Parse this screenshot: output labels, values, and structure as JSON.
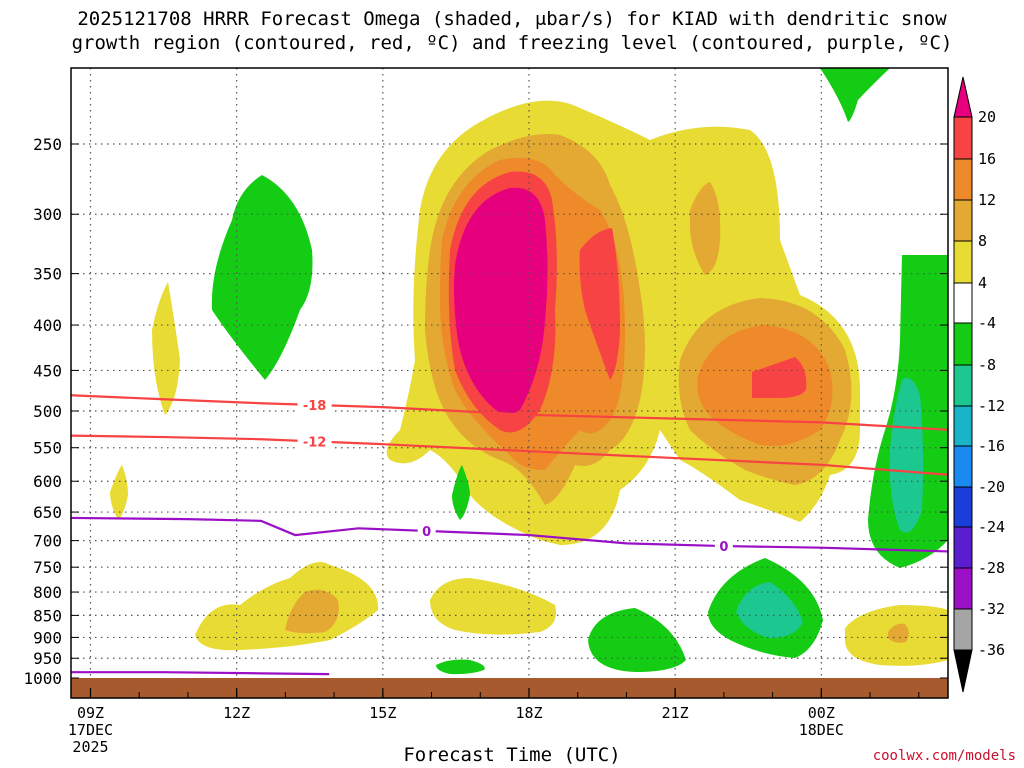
{
  "title_line1": "2025121708 HRRR Forecast Omega (shaded, μbar/s) for KIAD with dendritic snow",
  "title_line2": "growth region (contoured, red, ºC) and freezing level (contoured, purple, ºC)",
  "chart_data": {
    "type": "heatmap",
    "xlabel": "Forecast Time (UTC)",
    "x_ticks": [
      {
        "hour": 1,
        "label": "09Z",
        "sub1": "17DEC",
        "sub2": "2025"
      },
      {
        "hour": 4,
        "label": "12Z",
        "sub1": "",
        "sub2": ""
      },
      {
        "hour": 7,
        "label": "15Z",
        "sub1": "",
        "sub2": ""
      },
      {
        "hour": 10,
        "label": "18Z",
        "sub1": "",
        "sub2": ""
      },
      {
        "hour": 13,
        "label": "21Z",
        "sub1": "",
        "sub2": ""
      },
      {
        "hour": 16,
        "label": "00Z",
        "sub1": "18DEC",
        "sub2": ""
      }
    ],
    "x_range_hours": [
      0.6,
      18.6
    ],
    "y_ticks": [
      250,
      300,
      350,
      400,
      450,
      500,
      550,
      600,
      650,
      700,
      750,
      800,
      850,
      900,
      950,
      1000
    ],
    "y_range_hpa": [
      200,
      1000
    ],
    "colorbar": {
      "labels": [
        "20",
        "16",
        "12",
        "8",
        "4",
        "-4",
        "-8",
        "-12",
        "-16",
        "-20",
        "-24",
        "-28",
        "-32",
        "-36"
      ],
      "colors": [
        "#e6007e",
        "#f74343",
        "#ef8a2b",
        "#e3a932",
        "#e8db33",
        "#ffffff",
        "#13cc13",
        "#1cc790",
        "#19b4c8",
        "#198af0",
        "#1a3ed9",
        "#5a1ed0",
        "#9b0fc6",
        "#a5a5a5"
      ]
    },
    "dgz_contours": [
      {
        "label": "-18",
        "color": "#f74343",
        "points": [
          [
            0.6,
            480
          ],
          [
            2.5,
            485
          ],
          [
            4.5,
            490
          ],
          [
            7,
            495
          ],
          [
            10,
            505
          ],
          [
            13,
            510
          ],
          [
            16,
            515
          ],
          [
            18.6,
            525
          ]
        ]
      },
      {
        "label": "-12",
        "color": "#f74343",
        "points": [
          [
            0.6,
            533
          ],
          [
            2.5,
            535
          ],
          [
            4.5,
            538
          ],
          [
            7,
            545
          ],
          [
            10,
            555
          ],
          [
            13,
            565
          ],
          [
            16,
            575
          ],
          [
            18.6,
            590
          ]
        ]
      }
    ],
    "freezing_level_contours": [
      {
        "label": "0",
        "color": "#9b0fc6",
        "points": [
          [
            0.6,
            660
          ],
          [
            3,
            662
          ],
          [
            4.5,
            665
          ],
          [
            5.2,
            690
          ],
          [
            6.5,
            678
          ],
          [
            8,
            683
          ],
          [
            10,
            690
          ],
          [
            12,
            705
          ],
          [
            14,
            710
          ],
          [
            16,
            713
          ],
          [
            18.6,
            720
          ]
        ]
      },
      {
        "label": "",
        "color": "#9b0fc6",
        "points": [
          [
            0.6,
            985
          ],
          [
            2.5,
            985
          ],
          [
            4.5,
            988
          ],
          [
            5.9,
            990
          ]
        ]
      }
    ],
    "omega_regions": [
      {
        "value": "4",
        "color": "#e8db33"
      },
      {
        "value": "8",
        "color": "#e3a932"
      },
      {
        "value": "12",
        "color": "#ef8a2b"
      },
      {
        "value": "16",
        "color": "#f74343"
      },
      {
        "value": "20",
        "color": "#e6007e"
      },
      {
        "value": "-8",
        "color": "#13cc13"
      },
      {
        "value": "-12",
        "color": "#1cc790"
      }
    ],
    "ground_color": "#a65a2e"
  },
  "credit": "coolwx.com/models"
}
